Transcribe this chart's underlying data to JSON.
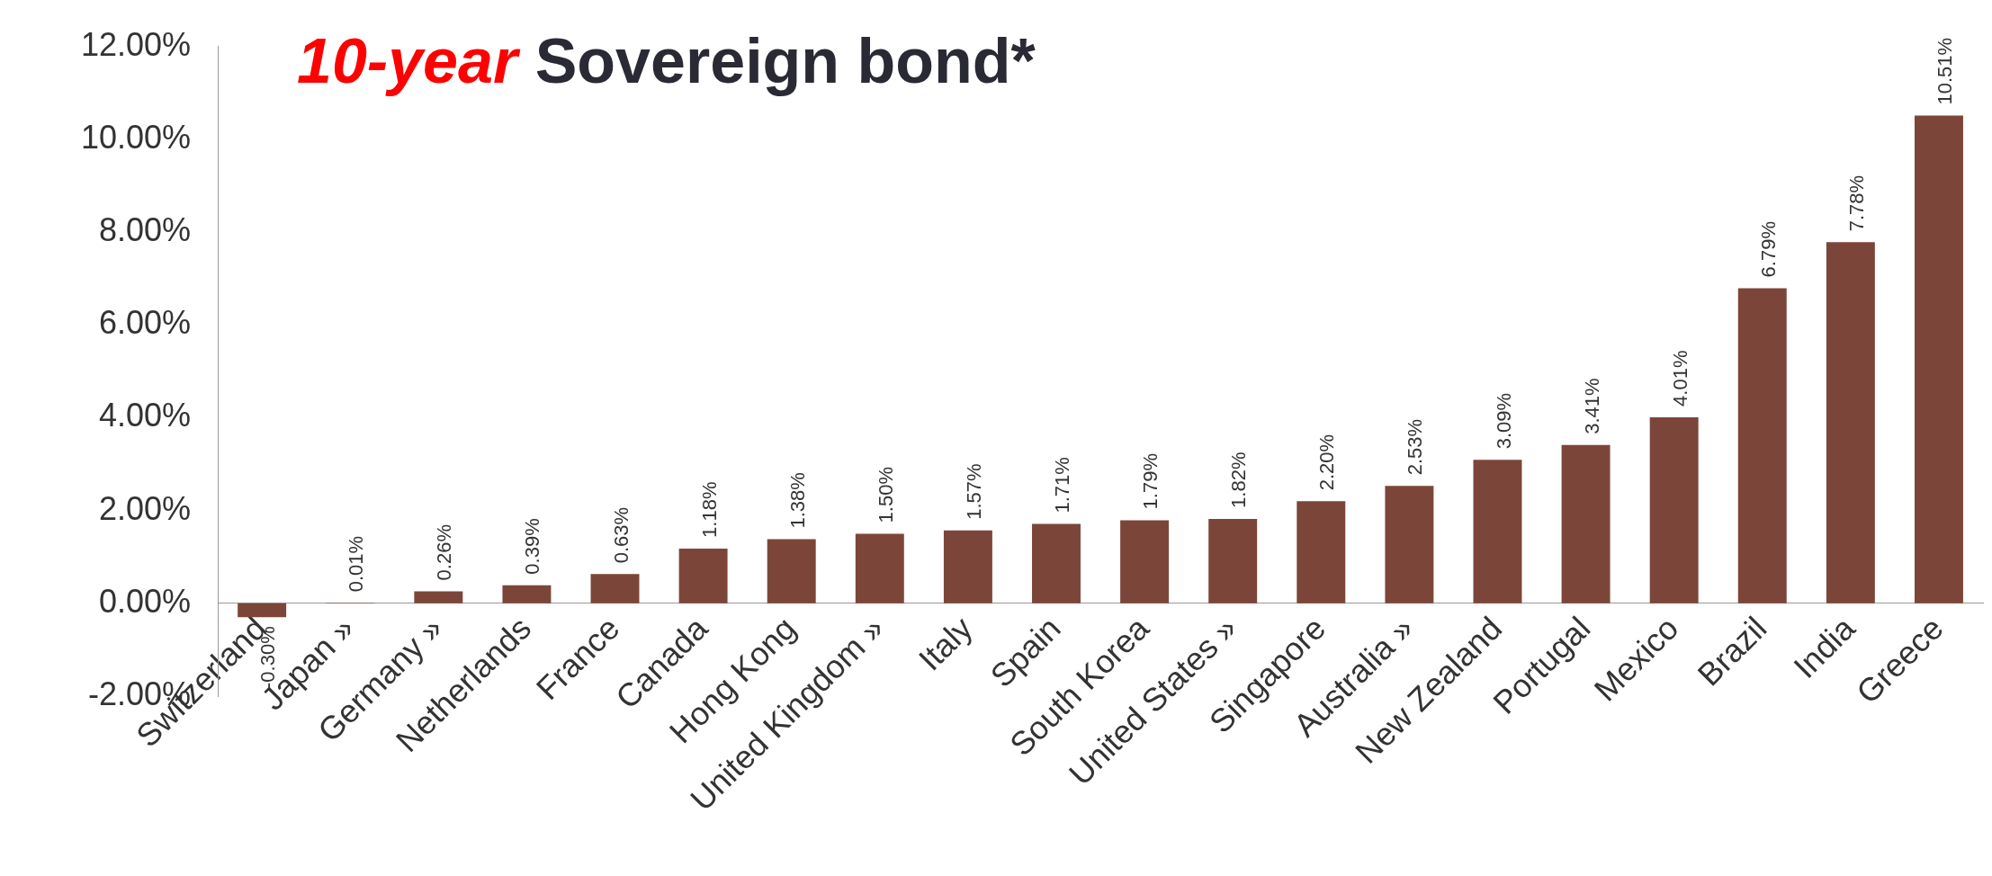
{
  "chart_data": {
    "type": "bar",
    "title": "10-year Sovereign bond*",
    "categories": [
      "Switzerland",
      "Japan »",
      "Germany »",
      "Netherlands",
      "France",
      "Canada",
      "Hong Kong",
      "United Kingdom »",
      "Italy",
      "Spain",
      "South Korea",
      "United States »",
      "Singapore",
      "Australia »",
      "New Zealand",
      "Portugal",
      "Mexico",
      "Brazil",
      "India",
      "Greece"
    ],
    "values": [
      -0.3,
      0.01,
      0.26,
      0.39,
      0.63,
      1.18,
      1.38,
      1.5,
      1.57,
      1.71,
      1.79,
      1.82,
      2.2,
      2.53,
      3.09,
      3.41,
      4.01,
      6.79,
      7.78,
      10.51
    ],
    "value_labels": [
      "-0.30%",
      "0.01%",
      "0.26%",
      "0.39%",
      "0.63%",
      "1.18%",
      "1.38%",
      "1.50%",
      "1.57%",
      "1.71%",
      "1.79%",
      "1.82%",
      "2.20%",
      "2.53%",
      "3.09%",
      "3.41%",
      "4.01%",
      "6.79%",
      "7.78%",
      "10.51%"
    ],
    "color": "#7b4639",
    "ylim": [
      -2,
      12
    ],
    "yticks": [
      {
        "value": -2,
        "label": "-2.00%"
      },
      {
        "value": 0,
        "label": "0.00%"
      },
      {
        "value": 2,
        "label": "2.00%"
      },
      {
        "value": 4,
        "label": "4.00%"
      },
      {
        "value": 6,
        "label": "6.00%"
      },
      {
        "value": 8,
        "label": "8.00%"
      },
      {
        "value": 10,
        "label": "10.00%"
      },
      {
        "value": 12,
        "label": "12.00%"
      }
    ],
    "grid": false,
    "legend": false
  }
}
